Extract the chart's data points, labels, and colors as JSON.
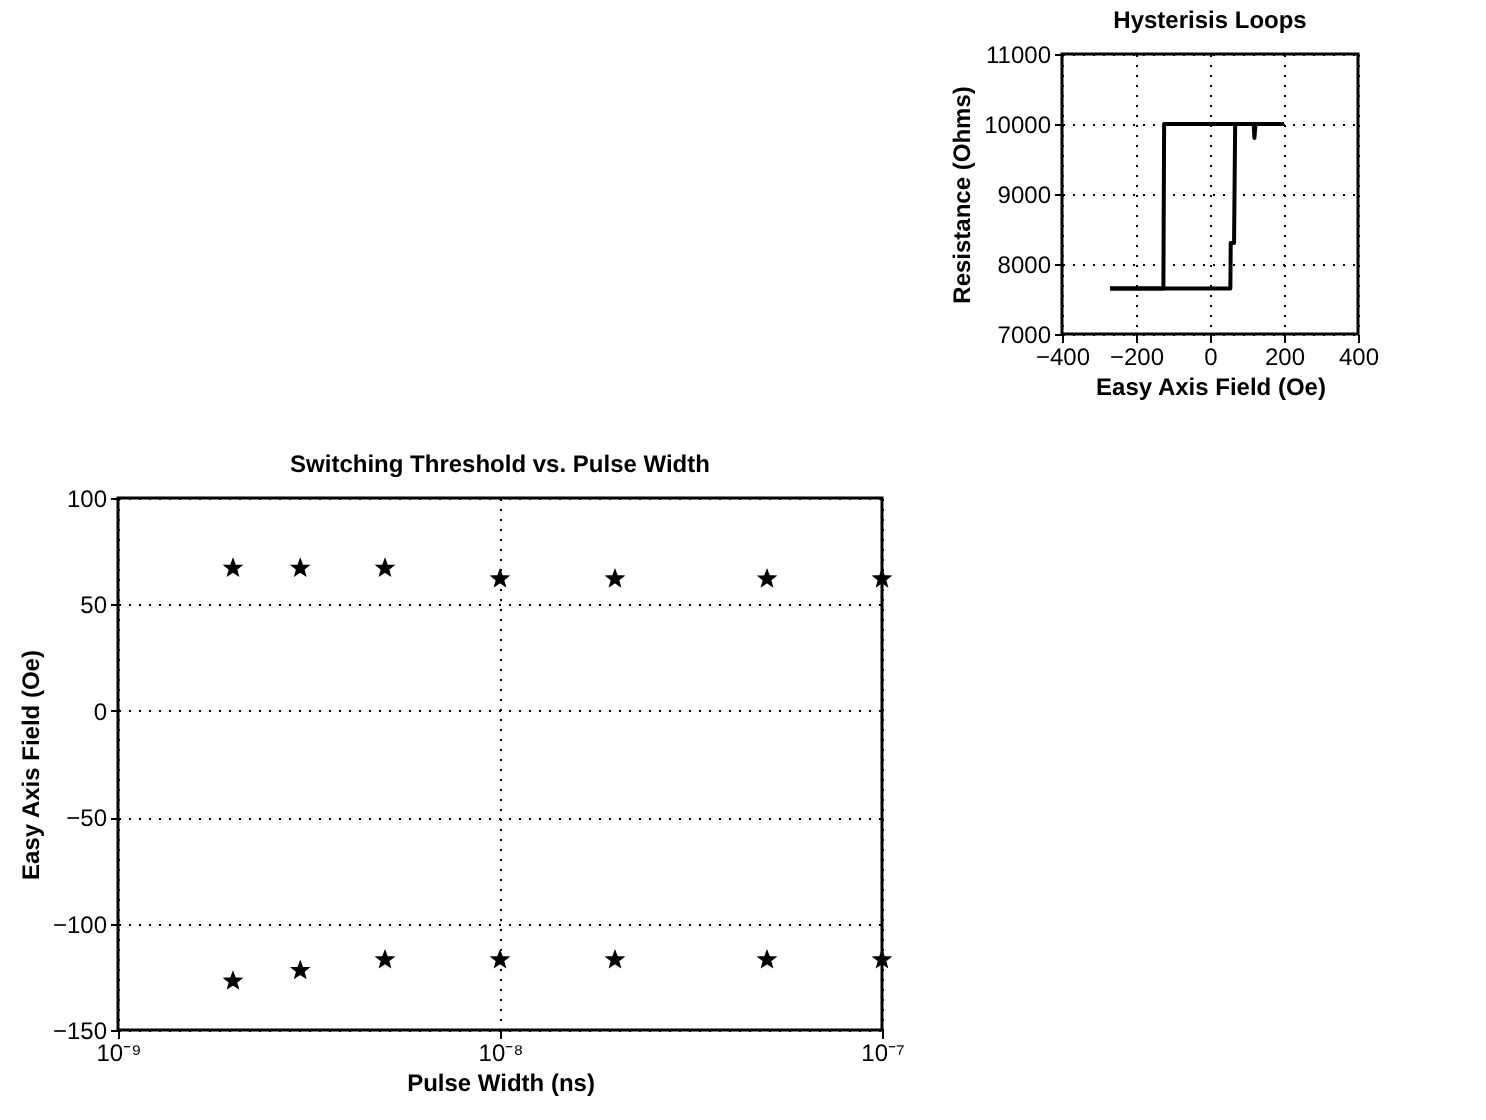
{
  "chart_data": [
    {
      "type": "line",
      "title": "Hysterisis Loops",
      "xlabel": "Easy Axis Field (Oe)",
      "ylabel": "Resistance (Ohms)",
      "xlim": [
        -400,
        400
      ],
      "xticks": [
        -400,
        -200,
        0,
        200,
        400
      ],
      "ylim": [
        7000,
        11000
      ],
      "yticks": [
        7000,
        8000,
        9000,
        10000,
        11000
      ],
      "grid": true,
      "series": [
        {
          "color": "#000000",
          "x": [
            -270,
            55,
            56,
            65,
            68,
            118,
            120,
            123,
            200
          ],
          "values": [
            7650,
            7650,
            8300,
            8300,
            10000,
            10000,
            9800,
            10000,
            10000
          ]
        },
        {
          "color": "#000000",
          "x": [
            200,
            -124,
            -126,
            -270
          ],
          "values": [
            10000,
            10000,
            7650,
            7650
          ]
        }
      ]
    },
    {
      "type": "scatter",
      "title": "Switching Threshold vs. Pulse Width",
      "xlabel": "Pulse Width (ns)",
      "ylabel": "Easy Axis Field (Oe)",
      "log": "x",
      "marker": "star",
      "grid": true,
      "xlim": [
        1e-09,
        1e-07
      ],
      "xticks": [
        {
          "value": 1e-09,
          "label": "10⁻⁹"
        },
        {
          "value": 1e-08,
          "label": "10⁻⁸"
        },
        {
          "value": 1e-07,
          "label": "10⁻⁷"
        }
      ],
      "ylim": [
        -150,
        100
      ],
      "yticks": [
        -150,
        -100,
        -50,
        0,
        50,
        100
      ],
      "x": [
        2e-09,
        3e-09,
        5e-09,
        1e-08,
        2e-08,
        5e-08,
        1e-07
      ],
      "series": [
        {
          "color": "#000000",
          "values": [
            67,
            67,
            67,
            62,
            62,
            62,
            62
          ]
        },
        {
          "color": "#000000",
          "values": [
            -127,
            -122,
            -117,
            -117,
            -117,
            -117,
            -117
          ]
        }
      ]
    }
  ]
}
